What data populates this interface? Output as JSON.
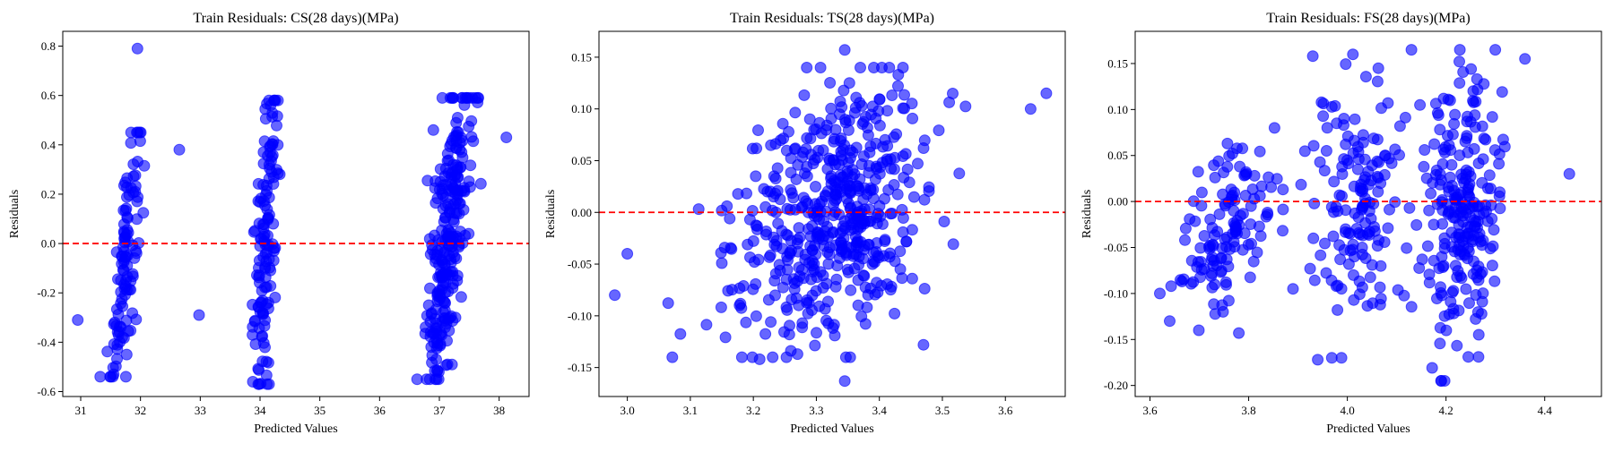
{
  "chart_data": [
    {
      "type": "scatter",
      "title": "Train Residuals: CS(28 days)(MPa)",
      "xlabel": "Predicted Values",
      "ylabel": "Residuals",
      "xlim": [
        30.7,
        38.5
      ],
      "ylim": [
        -0.62,
        0.86
      ],
      "xticks": [
        31,
        32,
        33,
        34,
        35,
        36,
        37,
        38
      ],
      "yticks": [
        -0.6,
        -0.4,
        -0.2,
        0.0,
        0.2,
        0.4,
        0.6,
        0.8
      ],
      "reference_line": 0.0,
      "marker_color": "#0000ff",
      "line_color": "#ff0000",
      "grid": false,
      "clusters": [
        {
          "x_center": 31.75,
          "x_spread": 0.22,
          "y_low": -0.54,
          "y_high": 0.45,
          "slope": 1.7,
          "count": 110
        },
        {
          "x_center": 34.1,
          "x_spread": 0.2,
          "y_low": -0.57,
          "y_high": 0.58,
          "slope": 1.6,
          "count": 130
        },
        {
          "x_center": 37.15,
          "x_spread": 0.33,
          "y_low": -0.55,
          "y_high": 0.59,
          "slope": 1.2,
          "count": 260
        }
      ],
      "points": [
        [
          30.95,
          -0.31
        ],
        [
          31.95,
          0.79
        ],
        [
          32.65,
          0.38
        ],
        [
          32.98,
          -0.29
        ],
        [
          38.12,
          0.43
        ],
        [
          36.9,
          0.46
        ],
        [
          37.55,
          0.59
        ],
        [
          34.3,
          0.58
        ],
        [
          31.55,
          -0.53
        ],
        [
          33.88,
          -0.56
        ]
      ]
    },
    {
      "type": "scatter",
      "title": "Train Residuals: TS(28 days)(MPa)",
      "xlabel": "Predicted Values",
      "ylabel": "Residuals",
      "xlim": [
        2.955,
        3.695
      ],
      "ylim": [
        -0.178,
        0.175
      ],
      "xticks": [
        3.0,
        3.1,
        3.2,
        3.3,
        3.4,
        3.5,
        3.6
      ],
      "yticks": [
        -0.15,
        -0.1,
        -0.05,
        0.0,
        0.05,
        0.1,
        0.15
      ],
      "reference_line": 0.0,
      "marker_color": "#0000ff",
      "line_color": "#ff0000",
      "grid": false,
      "clusters": [
        {
          "x_center": 3.32,
          "x_spread": 0.14,
          "y_low": -0.14,
          "y_high": 0.14,
          "slope": 0.25,
          "count": 520
        }
      ],
      "points": [
        [
          2.98,
          -0.08
        ],
        [
          3.345,
          0.157
        ],
        [
          3.345,
          -0.163
        ],
        [
          3.665,
          0.115
        ],
        [
          3.27,
          -0.137
        ],
        [
          3.43,
          0.133
        ],
        [
          3.21,
          -0.142
        ],
        [
          3.47,
          -0.128
        ],
        [
          3.0,
          -0.04
        ],
        [
          3.64,
          0.1
        ]
      ]
    },
    {
      "type": "scatter",
      "title": "Train Residuals: FS(28 days)(MPa)",
      "xlabel": "Predicted Values",
      "ylabel": "Residuals",
      "xlim": [
        3.57,
        4.515
      ],
      "ylim": [
        -0.212,
        0.185
      ],
      "xticks": [
        3.6,
        3.8,
        4.0,
        4.2,
        4.4
      ],
      "yticks": [
        -0.2,
        -0.15,
        -0.1,
        -0.05,
        0.0,
        0.05,
        0.1,
        0.15
      ],
      "reference_line": 0.0,
      "marker_color": "#0000ff",
      "line_color": "#ff0000",
      "grid": false,
      "clusters": [
        {
          "x_center": 3.76,
          "x_spread": 0.09,
          "y_low": -0.14,
          "y_high": 0.08,
          "slope": 0.3,
          "count": 130
        },
        {
          "x_center": 4.02,
          "x_spread": 0.09,
          "y_low": -0.17,
          "y_high": 0.16,
          "slope": 0.3,
          "count": 150
        },
        {
          "x_center": 4.23,
          "x_spread": 0.07,
          "y_low": -0.195,
          "y_high": 0.165,
          "slope": 0.35,
          "count": 240
        }
      ],
      "points": [
        [
          3.62,
          -0.1
        ],
        [
          3.64,
          -0.13
        ],
        [
          4.45,
          0.03
        ],
        [
          4.36,
          0.155
        ],
        [
          4.19,
          -0.195
        ],
        [
          3.93,
          0.158
        ],
        [
          4.13,
          0.165
        ],
        [
          3.94,
          -0.172
        ],
        [
          3.78,
          -0.143
        ],
        [
          4.03,
          -0.05
        ]
      ]
    }
  ]
}
